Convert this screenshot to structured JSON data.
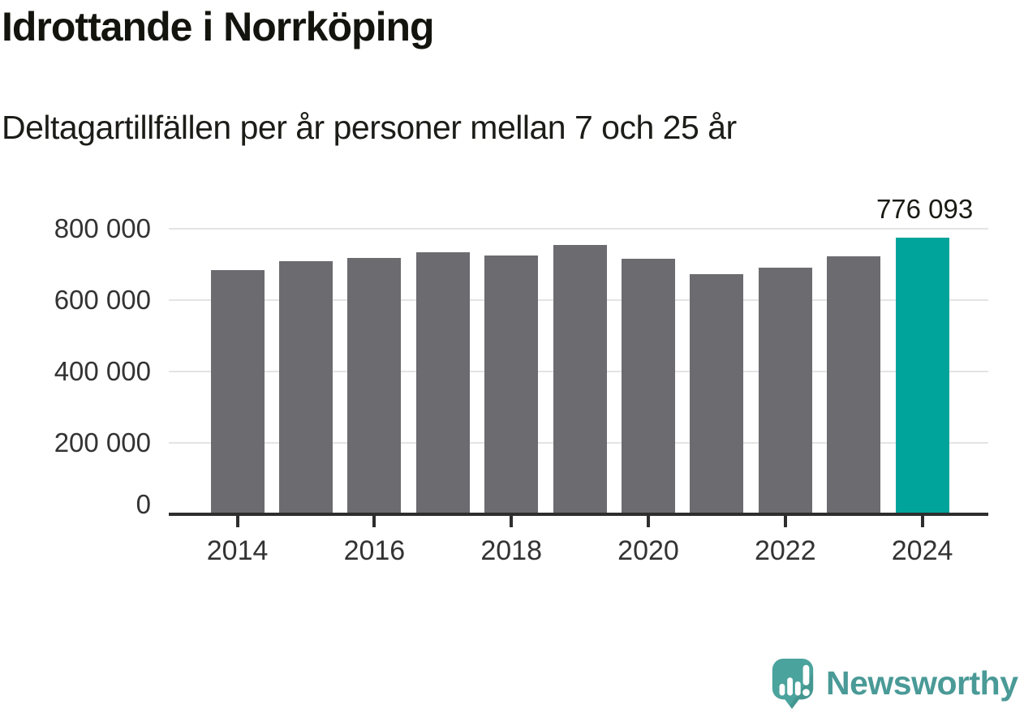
{
  "header": {
    "title": "Idrottande i Norrköping",
    "subtitle": "Deltagartillfällen per år personer mellan 7 och 25 år"
  },
  "colors": {
    "bar_default": "#6b6b70",
    "bar_highlight": "#00a49b",
    "gridline": "#e4e4e4",
    "axis": "#2e2e2e",
    "tick_label": "#333333",
    "logo_teal": "#4ba39d",
    "logo_text": "#4a9a97"
  },
  "chart_data": {
    "type": "bar",
    "title": "Idrottande i Norrköping",
    "subtitle": "Deltagartillfällen per år personer mellan 7 och 25 år",
    "categories": [
      "2014",
      "2015",
      "2016",
      "2017",
      "2018",
      "2019",
      "2020",
      "2021",
      "2022",
      "2023",
      "2024"
    ],
    "values": [
      684000,
      708000,
      718000,
      734000,
      725000,
      755000,
      715000,
      672000,
      692000,
      723000,
      776093
    ],
    "values_note": "gray bars estimated from pixel heights; 2024 value labeled on chart",
    "highlight_index": 10,
    "data_label": "776 093",
    "ylim": [
      0,
      800000
    ],
    "yticks": [
      0,
      200000,
      400000,
      600000,
      800000
    ],
    "ytick_labels": [
      "0",
      "200 000",
      "400 000",
      "600 000",
      "800 000"
    ],
    "xtick_indices": [
      0,
      2,
      4,
      6,
      8,
      10
    ],
    "xtick_labels": [
      "2014",
      "2016",
      "2018",
      "2020",
      "2022",
      "2024"
    ],
    "grid": true,
    "legend": "none"
  },
  "logo": {
    "wordmark": "Newsworthy",
    "icon": "newsworthy-speech-bubble-chart-icon"
  }
}
